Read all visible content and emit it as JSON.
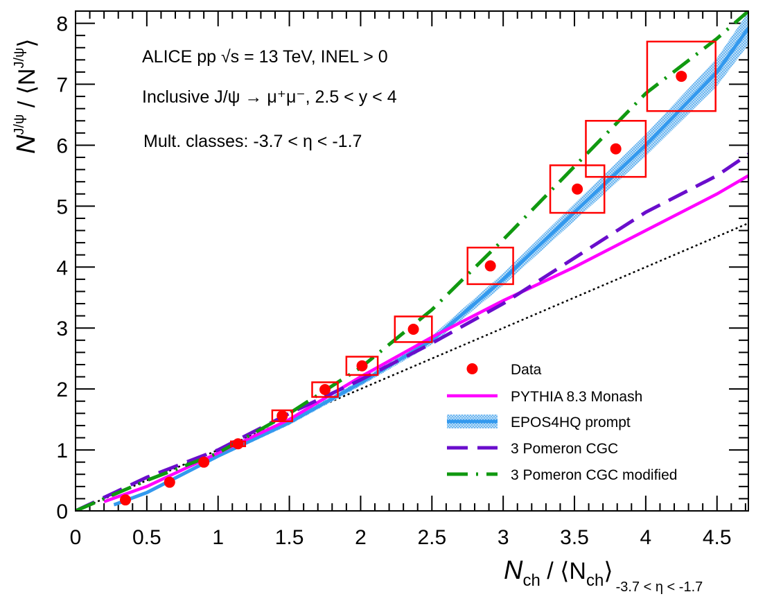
{
  "annotations": {
    "line1": "ALICE pp √s = 13 TeV, INEL > 0",
    "line2": "Inclusive J/ψ → μ⁺μ⁻, 2.5 < y < 4",
    "line3": "Mult. classes: -3.7 < η < -1.7"
  },
  "axes": {
    "x_title_main": "N",
    "x_title_sub": "ch",
    "x_title_mid": " / ⟨N",
    "x_title_sub2": "ch",
    "x_title_close": "⟩",
    "x_title_range": "-3.7 < η < -1.7",
    "y_title_main": "N",
    "y_title_sup": "J/ψ",
    "y_title_mid": " / ⟨N",
    "y_title_sup2": "J/ψ",
    "y_title_close": "⟩"
  },
  "colors": {
    "data": "#ff0000",
    "pythia": "#ff00ff",
    "epos": "#3399ee",
    "pomeron": "#6a0dcc",
    "pomeron_mod": "#109910",
    "diagonal": "#000000"
  },
  "chart_data": {
    "type": "scatter",
    "xlim": [
      0,
      4.72
    ],
    "ylim": [
      0,
      8.2
    ],
    "x_ticks": [
      "0",
      "0.5",
      "1",
      "1.5",
      "2",
      "2.5",
      "3",
      "3.5",
      "4",
      "4.5"
    ],
    "y_ticks": [
      "0",
      "1",
      "2",
      "3",
      "4",
      "5",
      "6",
      "7",
      "8"
    ],
    "legend_position": "bottom-right",
    "series": [
      {
        "name": "Data",
        "kind": "points",
        "x": [
          0.35,
          0.66,
          0.9,
          1.14,
          1.45,
          1.75,
          2.01,
          2.37,
          2.91,
          3.52,
          3.79,
          4.25
        ],
        "y": [
          0.18,
          0.47,
          0.8,
          1.1,
          1.56,
          1.99,
          2.38,
          2.98,
          4.02,
          5.28,
          5.94,
          7.13
        ],
        "sys_dx": [
          0.0,
          0.0,
          0.03,
          0.05,
          0.07,
          0.09,
          0.11,
          0.13,
          0.16,
          0.19,
          0.21,
          0.24
        ],
        "sys_dy": [
          0.0,
          0.0,
          0.03,
          0.04,
          0.09,
          0.12,
          0.15,
          0.21,
          0.3,
          0.39,
          0.46,
          0.57
        ]
      },
      {
        "name": "PYTHIA 8.3 Monash",
        "kind": "line",
        "x": [
          0.2,
          0.5,
          1.0,
          1.5,
          2.0,
          2.5,
          3.0,
          3.5,
          4.0,
          4.5,
          4.72
        ],
        "y": [
          0.15,
          0.4,
          0.95,
          1.5,
          2.2,
          2.85,
          3.45,
          4.0,
          4.6,
          5.2,
          5.5
        ]
      },
      {
        "name": "EPOS4HQ prompt",
        "kind": "band",
        "x": [
          0.27,
          0.5,
          1.0,
          1.5,
          2.0,
          2.5,
          3.0,
          3.5,
          4.0,
          4.5,
          4.72
        ],
        "y": [
          0.1,
          0.3,
          0.9,
          1.45,
          2.1,
          2.8,
          3.8,
          4.9,
          6.0,
          7.2,
          7.92
        ],
        "band_half_width": [
          0.02,
          0.02,
          0.03,
          0.04,
          0.05,
          0.07,
          0.1,
          0.14,
          0.18,
          0.23,
          0.27
        ]
      },
      {
        "name": "3 Pomeron CGC",
        "kind": "line",
        "x": [
          0.0,
          0.5,
          1.0,
          1.5,
          2.0,
          2.5,
          3.0,
          3.5,
          4.0,
          4.5,
          4.72
        ],
        "y": [
          0.0,
          0.55,
          1.0,
          1.6,
          2.15,
          2.75,
          3.4,
          4.15,
          4.9,
          5.5,
          5.85
        ]
      },
      {
        "name": "3 Pomeron CGC modified",
        "kind": "line",
        "x": [
          0.0,
          0.5,
          1.0,
          1.5,
          2.0,
          2.5,
          3.0,
          3.5,
          4.0,
          4.5,
          4.72
        ],
        "y": [
          0.0,
          0.5,
          0.95,
          1.6,
          2.35,
          3.3,
          4.45,
          5.65,
          6.85,
          7.75,
          8.2
        ]
      },
      {
        "kind": "line",
        "x": [
          0.0,
          4.72
        ],
        "y": [
          0.0,
          4.72
        ]
      }
    ]
  }
}
